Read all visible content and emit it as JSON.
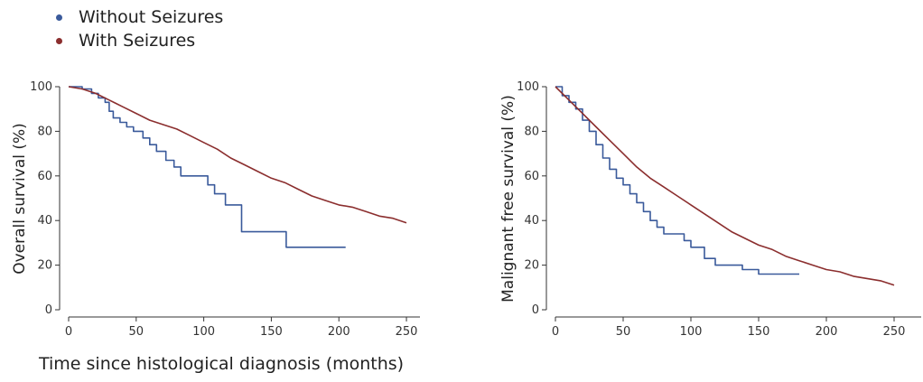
{
  "legend": {
    "items": [
      {
        "label": "Without Seizures",
        "color": "#3a5a9b"
      },
      {
        "label": "With Seizures",
        "color": "#8b2e2e"
      }
    ]
  },
  "xlabel": "Time since histological diagnosis (months)",
  "chart_data": [
    {
      "type": "line",
      "ylabel": "Overall survival (%)",
      "xlim": [
        0,
        260
      ],
      "ylim": [
        0,
        100
      ],
      "xticks": [
        0,
        50,
        100,
        150,
        200,
        250
      ],
      "yticks": [
        0,
        20,
        40,
        60,
        80,
        100
      ],
      "series": [
        {
          "name": "Without Seizures",
          "color": "#3a5a9b",
          "step": true,
          "points": [
            [
              0,
              100
            ],
            [
              10,
              99
            ],
            [
              17,
              97
            ],
            [
              22,
              95
            ],
            [
              27,
              93
            ],
            [
              30,
              89
            ],
            [
              33,
              86
            ],
            [
              38,
              84
            ],
            [
              43,
              82
            ],
            [
              48,
              80
            ],
            [
              55,
              77
            ],
            [
              60,
              74
            ],
            [
              65,
              71
            ],
            [
              72,
              67
            ],
            [
              78,
              64
            ],
            [
              83,
              60
            ],
            [
              96,
              60
            ],
            [
              103,
              56
            ],
            [
              108,
              52
            ],
            [
              116,
              47
            ],
            [
              121,
              47
            ],
            [
              128,
              35
            ],
            [
              160,
              35
            ],
            [
              161,
              28
            ],
            [
              205,
              28
            ]
          ]
        },
        {
          "name": "With Seizures",
          "color": "#8b2e2e",
          "step": false,
          "points": [
            [
              0,
              100
            ],
            [
              10,
              99
            ],
            [
              20,
              97
            ],
            [
              30,
              94
            ],
            [
              40,
              91
            ],
            [
              50,
              88
            ],
            [
              60,
              85
            ],
            [
              70,
              83
            ],
            [
              80,
              81
            ],
            [
              90,
              78
            ],
            [
              100,
              75
            ],
            [
              110,
              72
            ],
            [
              120,
              68
            ],
            [
              130,
              65
            ],
            [
              140,
              62
            ],
            [
              150,
              59
            ],
            [
              160,
              57
            ],
            [
              170,
              54
            ],
            [
              180,
              51
            ],
            [
              190,
              49
            ],
            [
              200,
              47
            ],
            [
              210,
              46
            ],
            [
              220,
              44
            ],
            [
              230,
              42
            ],
            [
              240,
              41
            ],
            [
              250,
              39
            ]
          ]
        }
      ]
    },
    {
      "type": "line",
      "ylabel": "Malignant free survival (%)",
      "xlim": [
        0,
        270
      ],
      "ylim": [
        0,
        100
      ],
      "xticks": [
        0,
        50,
        100,
        150,
        200,
        250
      ],
      "yticks": [
        0,
        20,
        40,
        60,
        80,
        100
      ],
      "series": [
        {
          "name": "Without Seizures",
          "color": "#3a5a9b",
          "step": true,
          "points": [
            [
              0,
              100
            ],
            [
              5,
              96
            ],
            [
              10,
              93
            ],
            [
              15,
              90
            ],
            [
              20,
              85
            ],
            [
              25,
              80
            ],
            [
              30,
              74
            ],
            [
              35,
              68
            ],
            [
              40,
              63
            ],
            [
              45,
              59
            ],
            [
              50,
              56
            ],
            [
              55,
              52
            ],
            [
              60,
              48
            ],
            [
              65,
              44
            ],
            [
              70,
              40
            ],
            [
              75,
              37
            ],
            [
              80,
              34
            ],
            [
              88,
              34
            ],
            [
              95,
              31
            ],
            [
              100,
              28
            ],
            [
              105,
              28
            ],
            [
              110,
              23
            ],
            [
              118,
              20
            ],
            [
              128,
              20
            ],
            [
              138,
              18
            ],
            [
              150,
              16
            ],
            [
              180,
              16
            ]
          ]
        },
        {
          "name": "With Seizures",
          "color": "#8b2e2e",
          "step": false,
          "points": [
            [
              0,
              100
            ],
            [
              10,
              94
            ],
            [
              20,
              88
            ],
            [
              30,
              82
            ],
            [
              40,
              76
            ],
            [
              50,
              70
            ],
            [
              60,
              64
            ],
            [
              70,
              59
            ],
            [
              80,
              55
            ],
            [
              90,
              51
            ],
            [
              100,
              47
            ],
            [
              110,
              43
            ],
            [
              120,
              39
            ],
            [
              130,
              35
            ],
            [
              140,
              32
            ],
            [
              150,
              29
            ],
            [
              160,
              27
            ],
            [
              170,
              24
            ],
            [
              180,
              22
            ],
            [
              190,
              20
            ],
            [
              200,
              18
            ],
            [
              210,
              17
            ],
            [
              220,
              15
            ],
            [
              230,
              14
            ],
            [
              240,
              13
            ],
            [
              250,
              11
            ]
          ]
        }
      ]
    }
  ]
}
